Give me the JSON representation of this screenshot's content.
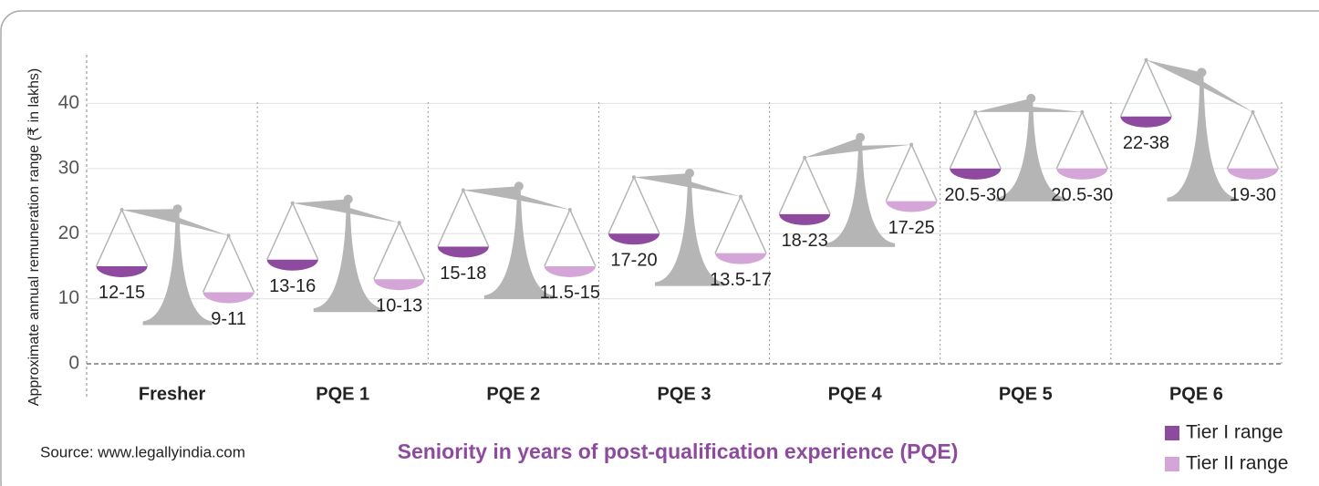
{
  "chart_data": {
    "type": "balance",
    "y_label": "Approximate annual remuneration range (₹ in lakhs)",
    "x_label": "Seniority in years of post-qualification experience (PQE)",
    "source": "Source: www.legallyindia.com",
    "categories": [
      "Fresher",
      "PQE 1",
      "PQE 2",
      "PQE 3",
      "PQE 4",
      "PQE 5",
      "PQE 6"
    ],
    "series": [
      {
        "name": "Tier I range",
        "color": "#8e4a9e",
        "low": [
          12,
          13,
          15,
          17,
          18,
          20.5,
          22
        ],
        "high": [
          15,
          16,
          18,
          20,
          23,
          30,
          38
        ],
        "value_labels": [
          "12-15",
          "13-16",
          "15-18",
          "17-20",
          "18-23",
          "20.5-30",
          "22-38"
        ]
      },
      {
        "name": "Tier II range",
        "color": "#d4a6d8",
        "low": [
          9,
          10,
          11.5,
          13.5,
          17,
          20.5,
          19
        ],
        "high": [
          11,
          13,
          15,
          17,
          25,
          30,
          30
        ],
        "value_labels": [
          "9-11",
          "10-13",
          "11.5-15",
          "13.5-17",
          "17-25",
          "20.5-30",
          "19-30"
        ]
      }
    ],
    "ylim": [
      0,
      47.5
    ],
    "yticks": [
      0,
      10,
      20,
      30,
      40
    ],
    "grid": true,
    "legend": "bottom-right"
  }
}
